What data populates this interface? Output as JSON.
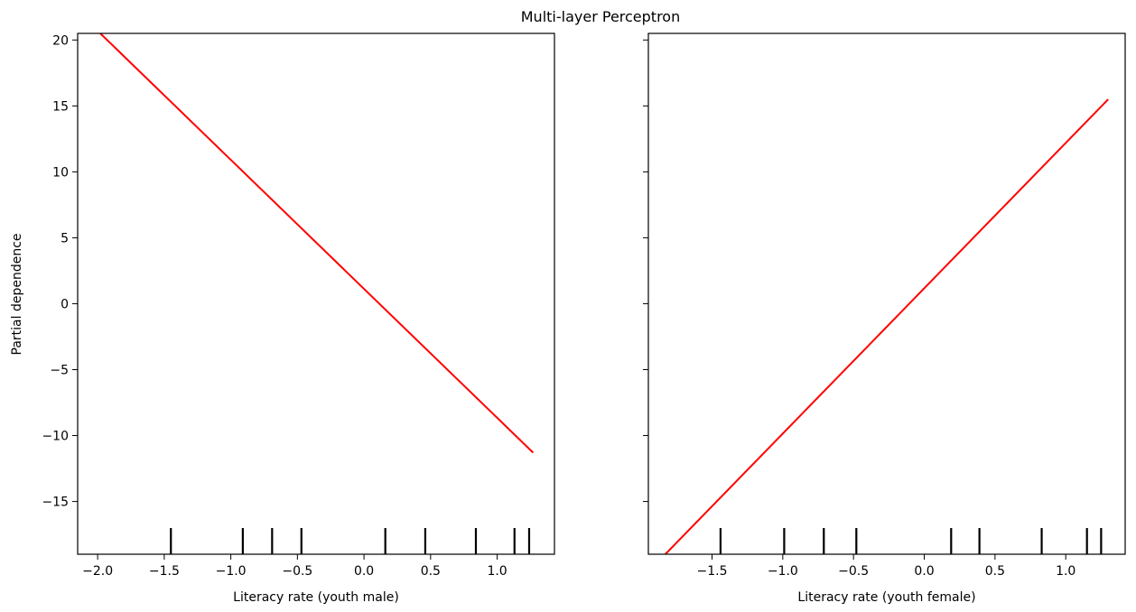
{
  "figure_title": "Multi-layer Perceptron",
  "ylabel": "Partial dependence",
  "chart_data": [
    {
      "type": "line",
      "xlabel": "Literacy rate (youth male)",
      "ylabel": "Partial dependence",
      "xlim": [
        -2.15,
        1.43
      ],
      "ylim": [
        -19.0,
        20.5
      ],
      "xticks": [
        -2.0,
        -1.5,
        -1.0,
        -0.5,
        0.0,
        0.5,
        1.0
      ],
      "xtick_labels": [
        "−2.0",
        "−1.5",
        "−1.0",
        "−0.5",
        "0.0",
        "0.5",
        "1.0"
      ],
      "yticks": [
        20,
        15,
        10,
        5,
        0,
        -5,
        -10,
        -15
      ],
      "ytick_labels": [
        "20",
        "15",
        "10",
        "5",
        "0",
        "−5",
        "−10",
        "−15"
      ],
      "show_ytick_labels": true,
      "series": [
        {
          "x": [
            -1.98,
            1.27
          ],
          "y": [
            20.5,
            -11.3
          ],
          "color": "#ff0000"
        }
      ],
      "rug": [
        -1.45,
        -0.91,
        -0.69,
        -0.47,
        0.16,
        0.46,
        0.84,
        1.13,
        1.24
      ],
      "grid": false
    },
    {
      "type": "line",
      "xlabel": "Literacy rate (youth female)",
      "ylabel": "",
      "xlim": [
        -1.95,
        1.42
      ],
      "ylim": [
        -19.0,
        20.5
      ],
      "xticks": [
        -1.5,
        -1.0,
        -0.5,
        0.0,
        0.5,
        1.0
      ],
      "xtick_labels": [
        "−1.5",
        "−1.0",
        "−0.5",
        "0.0",
        "0.5",
        "1.0"
      ],
      "yticks": [
        20,
        15,
        10,
        5,
        0,
        -5,
        -10,
        -15
      ],
      "ytick_labels": [],
      "show_ytick_labels": false,
      "series": [
        {
          "x": [
            -1.83,
            1.3
          ],
          "y": [
            -19.0,
            15.5
          ],
          "color": "#ff0000"
        }
      ],
      "rug": [
        -1.44,
        -0.99,
        -0.71,
        -0.48,
        0.19,
        0.39,
        0.83,
        1.15,
        1.25
      ],
      "grid": false
    }
  ]
}
